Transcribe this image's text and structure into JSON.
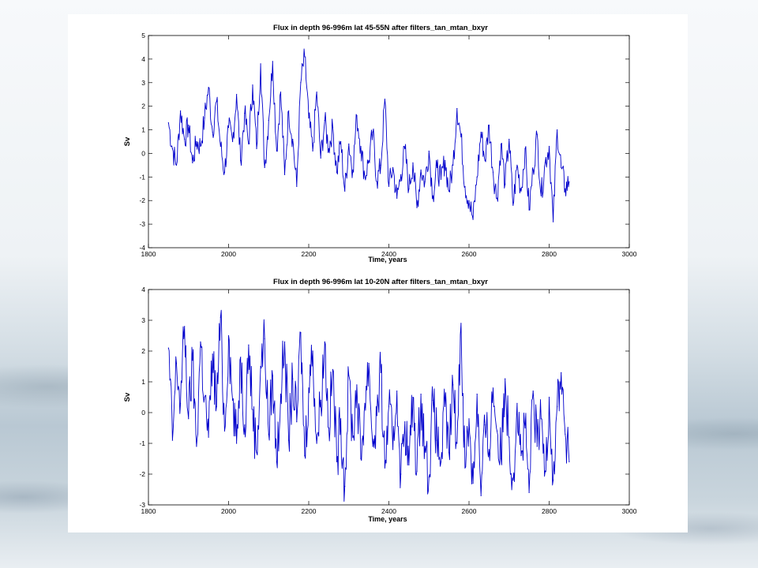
{
  "chart_data": [
    {
      "type": "line",
      "title": "Flux in depth 96-996m lat 45-55N after filters_tan_mtan_bxyr",
      "xlabel": "Time, years",
      "ylabel": "Sv",
      "xlim": [
        1800,
        3000
      ],
      "ylim": [
        -4,
        5
      ],
      "x_ticks": [
        "1800",
        "2000",
        "2200",
        "2400",
        "2600",
        "2800",
        "3000"
      ],
      "y_ticks": [
        "-4",
        "-3",
        "-2",
        "-1",
        "0",
        "1",
        "2",
        "3",
        "4",
        "5"
      ],
      "x_ticks_full": [
        "1800",
        "2000",
        "2200",
        "2400",
        "2600",
        "2800",
        "3000"
      ],
      "x_ticks_display": [
        "1800",
        "2000",
        "2200",
        "2400",
        "2600",
        "2800",
        "3000"
      ],
      "series_color": "#0000cc",
      "series": [
        {
          "x": [
            1850,
            1860,
            1870,
            1880,
            1890,
            1900,
            1910,
            1920,
            1930,
            1940,
            1950,
            1960,
            1970,
            1980,
            1990,
            2000,
            2010,
            2020,
            2030,
            2040,
            2050,
            2060,
            2070,
            2080,
            2090,
            2100,
            2110,
            2120,
            2130,
            2140,
            2150,
            2160,
            2170,
            2180,
            2190,
            2200,
            2210,
            2220,
            2230,
            2240,
            2250,
            2260,
            2270,
            2280,
            2290,
            2300,
            2310,
            2320,
            2330,
            2340,
            2350,
            2360,
            2370,
            2380,
            2390,
            2400,
            2410,
            2420,
            2430,
            2440,
            2450,
            2460,
            2470,
            2480,
            2490,
            2500,
            2510,
            2520,
            2530,
            2540,
            2550,
            2560,
            2570,
            2580,
            2590,
            2600,
            2610,
            2620,
            2630,
            2640,
            2650,
            2660,
            2670,
            2680,
            2690,
            2700,
            2710,
            2720,
            2730,
            2740,
            2750,
            2760,
            2770,
            2780,
            2790,
            2800,
            2810,
            2820,
            2830,
            2840,
            2850
          ],
          "y": [
            1.3,
            0.2,
            -0.5,
            1.8,
            0.6,
            1.2,
            -0.4,
            0.5,
            0.3,
            1.5,
            2.8,
            0.9,
            2.2,
            0.3,
            -0.8,
            1.1,
            0.5,
            2.5,
            -0.3,
            1.7,
            0.4,
            2.9,
            0.2,
            3.8,
            -0.6,
            1.4,
            3.9,
            0.1,
            2.6,
            -0.9,
            1.8,
            0.6,
            -1.4,
            3.0,
            4.1,
            1.5,
            0.1,
            2.6,
            -0.2,
            1.4,
            0.2,
            1.1,
            -0.8,
            0.5,
            -1.6,
            0.4,
            -0.7,
            1.6,
            0.3,
            -1.0,
            -0.3,
            0.9,
            -1.2,
            -0.5,
            2.3,
            -1.4,
            -0.6,
            -1.9,
            -0.9,
            0.2,
            -1.5,
            -0.4,
            -2.3,
            -0.7,
            -1.2,
            0.1,
            -1.8,
            -0.6,
            -1.1,
            -0.3,
            -1.6,
            -0.5,
            1.9,
            0.7,
            -1.4,
            -2.0,
            -2.8,
            -1.0,
            0.9,
            -0.3,
            1.2,
            -0.8,
            -1.9,
            0.4,
            -1.3,
            0.6,
            -2.2,
            -0.5,
            -1.6,
            0.2,
            -2.4,
            -0.7,
            0.8,
            -1.8,
            -0.4,
            0.3,
            -2.9,
            1.0,
            -0.6,
            -1.5,
            -1.2
          ]
        }
      ]
    },
    {
      "type": "line",
      "title": "Flux in depth 96-996m lat 10-20N after filters_tan_mtan_bxyr",
      "xlabel": "Time, years",
      "ylabel": "Sv",
      "xlim": [
        1800,
        3000
      ],
      "ylim": [
        -3,
        4
      ],
      "x_ticks": [
        "1800",
        "2000",
        "2200",
        "2400",
        "2600",
        "2800",
        "3000"
      ],
      "y_ticks": [
        "-3",
        "-2",
        "-1",
        "0",
        "1",
        "2",
        "3",
        "4"
      ],
      "series_color": "#0000cc",
      "series": [
        {
          "x": [
            1850,
            1860,
            1870,
            1880,
            1890,
            1900,
            1910,
            1920,
            1930,
            1940,
            1950,
            1960,
            1970,
            1980,
            1990,
            2000,
            2010,
            2020,
            2030,
            2040,
            2050,
            2060,
            2070,
            2080,
            2090,
            2100,
            2110,
            2120,
            2130,
            2140,
            2150,
            2160,
            2170,
            2180,
            2190,
            2200,
            2210,
            2220,
            2230,
            2240,
            2250,
            2260,
            2270,
            2280,
            2290,
            2300,
            2310,
            2320,
            2330,
            2340,
            2350,
            2360,
            2370,
            2380,
            2390,
            2400,
            2410,
            2420,
            2430,
            2440,
            2450,
            2460,
            2470,
            2480,
            2490,
            2500,
            2510,
            2520,
            2530,
            2540,
            2550,
            2560,
            2570,
            2580,
            2590,
            2600,
            2610,
            2620,
            2630,
            2640,
            2650,
            2660,
            2670,
            2680,
            2690,
            2700,
            2710,
            2720,
            2730,
            2740,
            2750,
            2760,
            2770,
            2780,
            2790,
            2800,
            2810,
            2820,
            2830,
            2840,
            2850
          ],
          "y": [
            2.1,
            -0.9,
            1.6,
            0.3,
            2.8,
            -0.2,
            1.7,
            -1.1,
            2.3,
            0.5,
            -0.8,
            1.9,
            0.2,
            3.1,
            -0.6,
            2.5,
            0.4,
            -1.0,
            1.8,
            -0.4,
            2.2,
            0.1,
            -1.3,
            1.5,
            2.4,
            -0.7,
            1.2,
            -1.6,
            0.6,
            2.3,
            -0.9,
            1.1,
            -0.3,
            2.6,
            -1.4,
            0.8,
            2.0,
            -1.0,
            0.4,
            2.3,
            -0.5,
            1.4,
            -1.6,
            -0.2,
            -2.4,
            1.2,
            -0.8,
            0.9,
            -1.5,
            0.3,
            1.6,
            -1.1,
            -0.1,
            1.3,
            -1.8,
            0.2,
            -1.2,
            0.7,
            -2.0,
            -0.3,
            -1.7,
            0.5,
            -1.9,
            0.6,
            -1.1,
            -2.1,
            0.4,
            -0.9,
            -1.6,
            0.2,
            -1.3,
            0.9,
            -1.0,
            2.9,
            -1.8,
            -0.2,
            -2.3,
            0.6,
            -2.7,
            -0.4,
            -1.2,
            0.8,
            -0.6,
            -1.5,
            1.1,
            -0.8,
            -2.2,
            0.3,
            -1.4,
            -0.5,
            -2.6,
            0.7,
            -1.1,
            -0.2,
            -1.9,
            0.5,
            -2.2,
            0.2,
            1.3,
            -0.7,
            -1.6
          ]
        }
      ]
    }
  ]
}
